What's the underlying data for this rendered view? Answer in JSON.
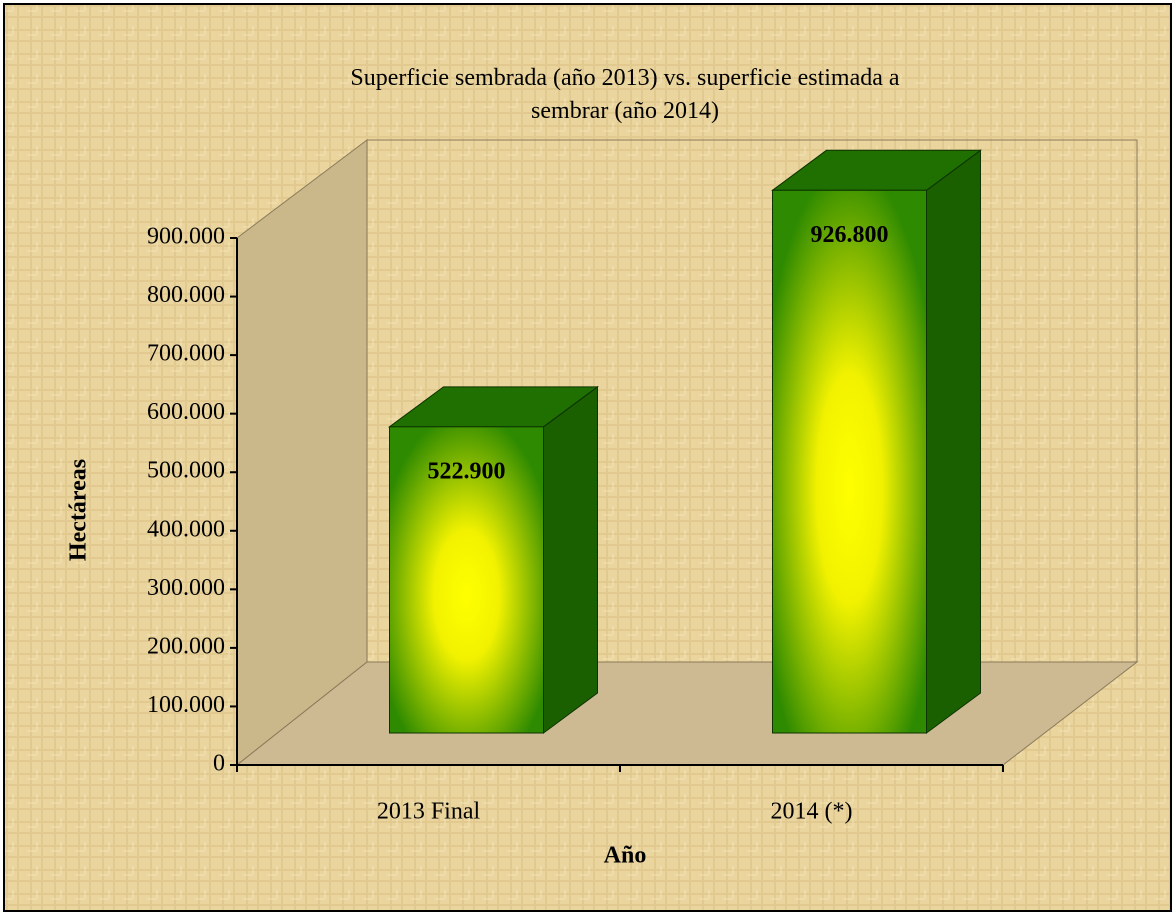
{
  "chart_data": {
    "type": "bar3d",
    "title": "Superficie sembrada (año 2013) vs. superficie estimada a sembrar (año 2014)",
    "x_label": "Año",
    "y_label": "Hectáreas",
    "categories": [
      "2013 Final",
      "2014 (*)"
    ],
    "values": [
      522900,
      926800
    ],
    "value_labels": [
      "522.900",
      "926.800"
    ],
    "ylim": [
      0,
      900000
    ],
    "yticks": [
      0,
      {
        "value": 100000,
        "label": "100.000"
      },
      {
        "value": 200000,
        "label": "200.000"
      },
      {
        "value": 300000,
        "label": "300.000"
      },
      {
        "value": 400000,
        "label": "400.000"
      },
      {
        "value": 500000,
        "label": "500.000"
      },
      {
        "value": 600000,
        "label": "600.000"
      },
      {
        "value": 700000,
        "label": "700.000"
      },
      {
        "value": 800000,
        "label": "800.000"
      },
      {
        "value": 900000,
        "label": "900.000"
      }
    ],
    "color": "#2a7d00",
    "grid": false
  }
}
